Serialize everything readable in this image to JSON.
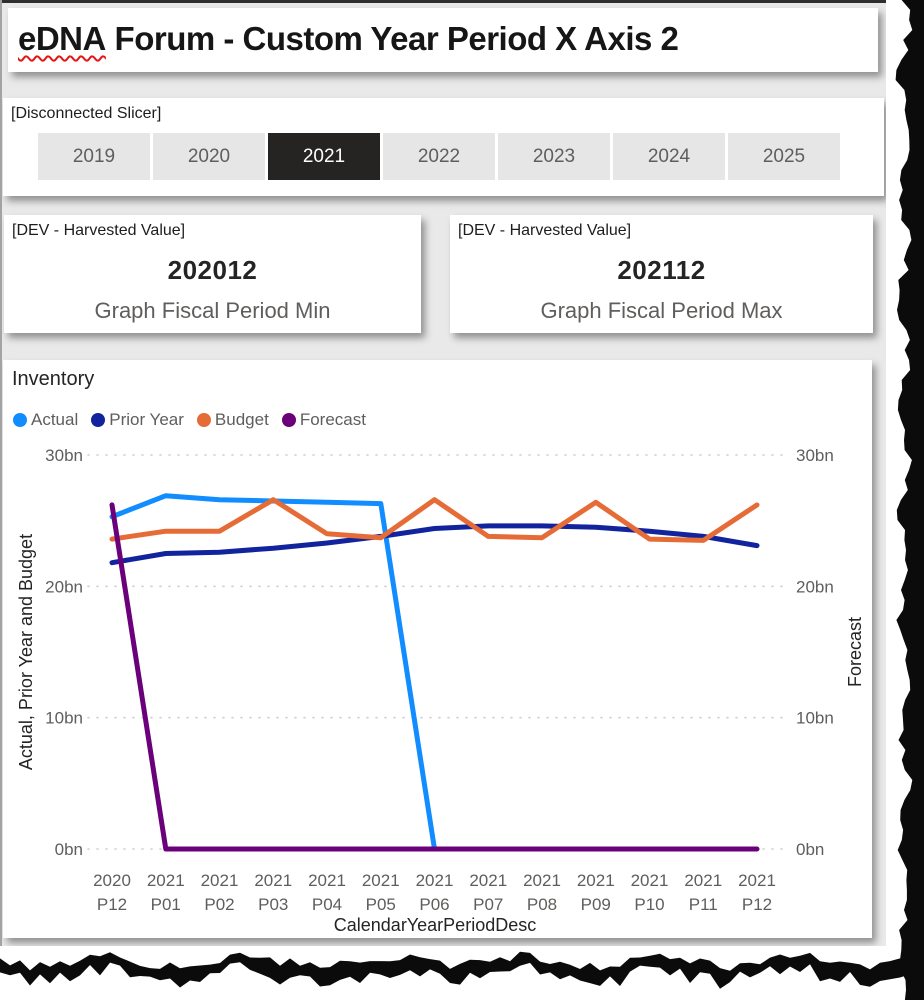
{
  "header": {
    "title_word": "eDNA",
    "title_rest": "Forum - Custom Year Period X Axis 2"
  },
  "slicer": {
    "title": "[Disconnected Slicer]",
    "years": [
      {
        "label": "2019",
        "selected": false
      },
      {
        "label": "2020",
        "selected": false
      },
      {
        "label": "2021",
        "selected": true
      },
      {
        "label": "2022",
        "selected": false
      },
      {
        "label": "2023",
        "selected": false
      },
      {
        "label": "2024",
        "selected": false
      },
      {
        "label": "2025",
        "selected": false
      }
    ]
  },
  "cards": [
    {
      "title": "[DEV - Harvested Value]",
      "value": "202012",
      "label": "Graph Fiscal Period Min"
    },
    {
      "title": "[DEV - Harvested Value]",
      "value": "202112",
      "label": "Graph Fiscal Period Max"
    }
  ],
  "chart_data": {
    "type": "line",
    "title": "Inventory",
    "xlabel": "CalendarYearPeriodDesc",
    "ylabel_left": "Actual, Prior Year and Budget",
    "ylabel_right": "Forecast",
    "yticks": [
      "30bn",
      "20bn",
      "10bn",
      "0bn"
    ],
    "ytick_values": [
      30,
      20,
      10,
      0
    ],
    "ylim": [
      0,
      30
    ],
    "grid": "dotted-horizontal",
    "legend_position": "top",
    "categories": [
      "2020 P12",
      "2021 P01",
      "2021 P02",
      "2021 P03",
      "2021 P04",
      "2021 P05",
      "2021 P06",
      "2021 P07",
      "2021 P08",
      "2021 P09",
      "2021 P10",
      "2021 P11",
      "2021 P12"
    ],
    "series": [
      {
        "name": "Actual",
        "color": "#118DFF",
        "values": [
          25.3,
          26.9,
          26.6,
          26.5,
          26.4,
          26.3,
          0,
          null,
          null,
          null,
          null,
          null,
          null
        ]
      },
      {
        "name": "Prior Year",
        "color": "#12239E",
        "values": [
          21.8,
          22.5,
          22.6,
          22.9,
          23.3,
          23.8,
          24.4,
          24.6,
          24.6,
          24.5,
          24.2,
          23.8,
          23.1
        ]
      },
      {
        "name": "Budget",
        "color": "#E66C37",
        "values": [
          23.6,
          24.2,
          24.2,
          26.6,
          24.0,
          23.7,
          26.6,
          23.8,
          23.7,
          26.4,
          23.6,
          23.5,
          26.2
        ]
      },
      {
        "name": "Forecast",
        "color": "#6B007B",
        "values": [
          26.2,
          0,
          0,
          0,
          0,
          0,
          0,
          0,
          0,
          0,
          0,
          0,
          0
        ]
      }
    ]
  }
}
